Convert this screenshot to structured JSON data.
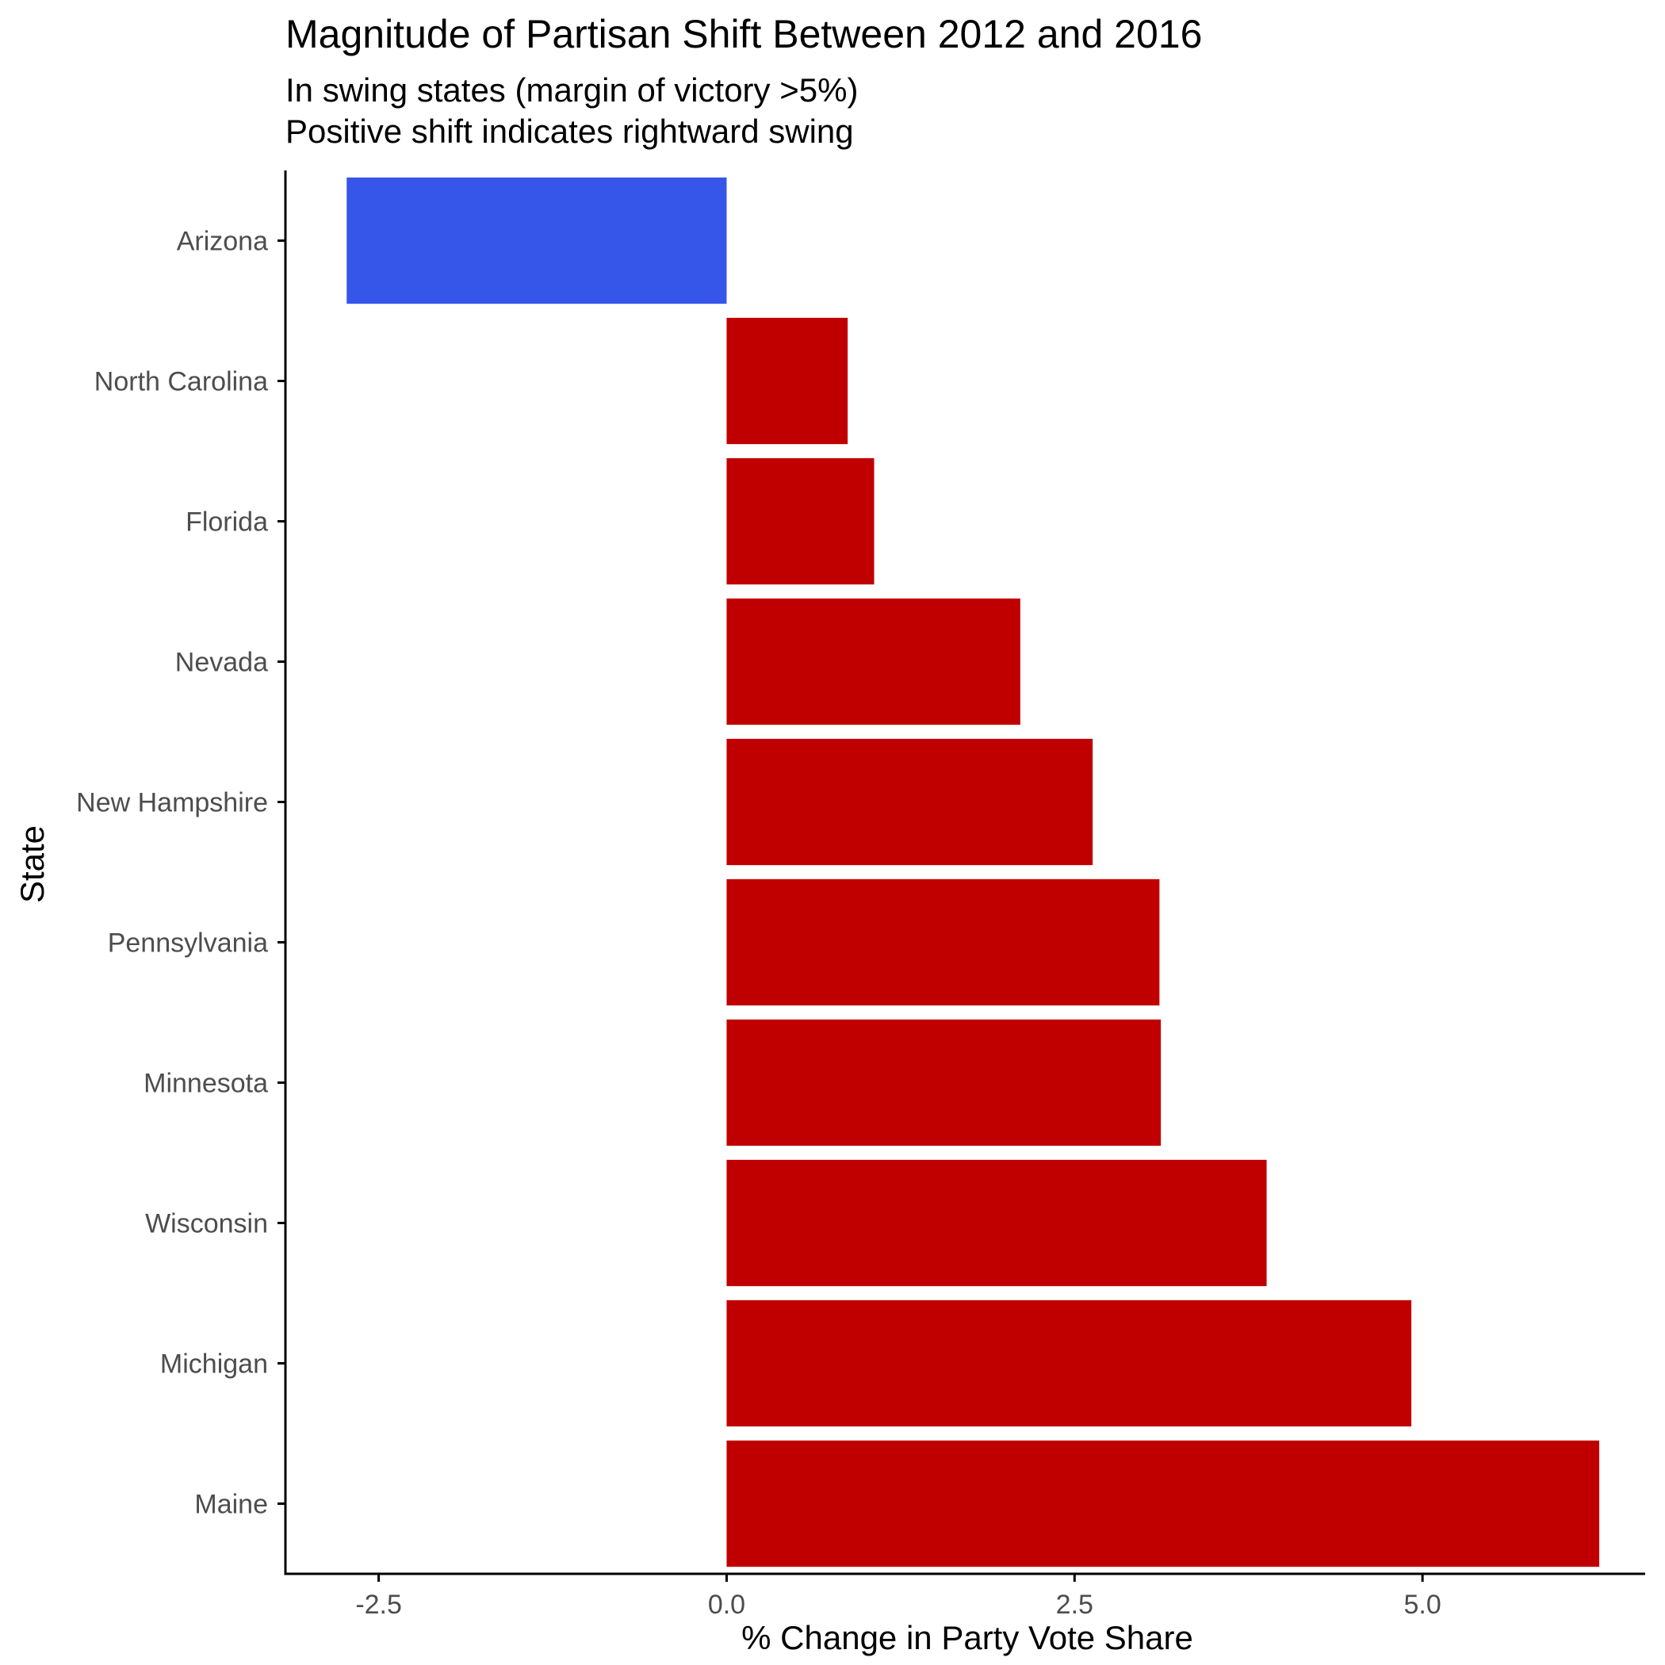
{
  "chart_data": {
    "type": "bar",
    "orientation": "horizontal",
    "title": "Magnitude of Partisan Shift Between 2012 and 2016",
    "subtitle_lines": [
      "In swing states (margin of victory >5%)",
      "Positive shift indicates rightward swing"
    ],
    "xlabel": "% Change in Party Vote Share",
    "ylabel": "State",
    "categories": [
      "Arizona",
      "North Carolina",
      "Florida",
      "Nevada",
      "New Hampshire",
      "Pennsylvania",
      "Minnesota",
      "Wisconsin",
      "Michigan",
      "Maine"
    ],
    "values": [
      -2.73,
      0.87,
      1.06,
      2.11,
      2.63,
      3.11,
      3.12,
      3.88,
      4.92,
      6.27
    ],
    "xlim": [
      -3.17,
      6.6
    ],
    "x_ticks": [
      -2.5,
      0.0,
      2.5,
      5.0
    ],
    "x_tick_labels": [
      "-2.5",
      "0.0",
      "2.5",
      "5.0"
    ],
    "grid": false,
    "legend": "none",
    "colors": {
      "negative": "#3556E8",
      "positive": "#C00000",
      "axis": "#000000",
      "tick_label": "#4d4d4d"
    }
  }
}
